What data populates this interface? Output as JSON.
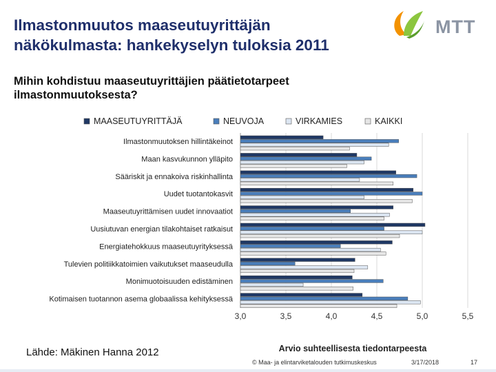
{
  "slide": {
    "title_line1": "Ilmastonmuutos maaseutuyrittäjän",
    "title_line2": "näkökulmasta: hankekyselyn tuloksia 2011",
    "logo_text": "MTT",
    "subtitle_line1": "Mihin kohdistuu maaseutuyrittäjien päätietotarpeet",
    "subtitle_line2": "ilmastonmuutoksesta?",
    "source": "Lähde: Mäkinen Hanna 2012",
    "footer_copyright": "© Maa- ja elintarviketalouden tutkimuskeskus",
    "footer_date": "3/17/2018",
    "footer_page": "17"
  },
  "colors": {
    "title": "#1f2f6b",
    "logo_orange": "#f39200",
    "logo_green": "#8cc63f",
    "series": [
      "#1f3864",
      "#4a7ebb",
      "#dce6f2",
      "#e6e6e6"
    ],
    "bar_outline": "#555555",
    "grid": "#d9d9d9"
  },
  "chart_data": {
    "type": "bar",
    "orientation": "horizontal",
    "xlabel": "Arvio suhteellisesta tiedontarpeesta",
    "xlim": [
      3.0,
      5.5
    ],
    "xticks": [
      "3,0",
      "3,5",
      "4,0",
      "4,5",
      "5,0",
      "5,5"
    ],
    "grid": true,
    "legend_position": "top",
    "categories": [
      "Ilmastonmuutoksen hillintäkeinot",
      "Maan kasvukunnon ylläpito",
      "Sääriskit ja ennakoiva riskinhallinta",
      "Uudet tuotantokasvit",
      "Maaseutuyrittämisen uudet innovaatiot",
      "Uusiutuvan energian tilakohtaiset ratkaisut",
      "Energiatehokkuus maaseutuyrityksessä",
      "Tulevien politiikkatoimien vaikutukset maaseudulla",
      "Monimuotoisuuden edistäminen",
      "Kotimaisen tuotannon asema globaalissa kehityksessä"
    ],
    "series": [
      {
        "name": "MAASEUTUYRITTÄJÄ",
        "values": [
          3.91,
          4.28,
          4.71,
          4.9,
          4.68,
          5.03,
          4.67,
          4.26,
          4.23,
          4.34
        ]
      },
      {
        "name": "NEUVOJA",
        "values": [
          4.74,
          4.44,
          4.94,
          5.0,
          4.21,
          4.58,
          4.1,
          3.6,
          4.57,
          4.84
        ]
      },
      {
        "name": "VIRKAMIES",
        "values": [
          4.63,
          4.36,
          4.31,
          4.36,
          4.64,
          5.0,
          4.54,
          4.4,
          3.69,
          4.98
        ]
      },
      {
        "name": "KAIKKI",
        "values": [
          4.2,
          4.17,
          4.68,
          4.89,
          4.58,
          4.75,
          4.6,
          4.25,
          4.24,
          4.72
        ]
      }
    ]
  }
}
